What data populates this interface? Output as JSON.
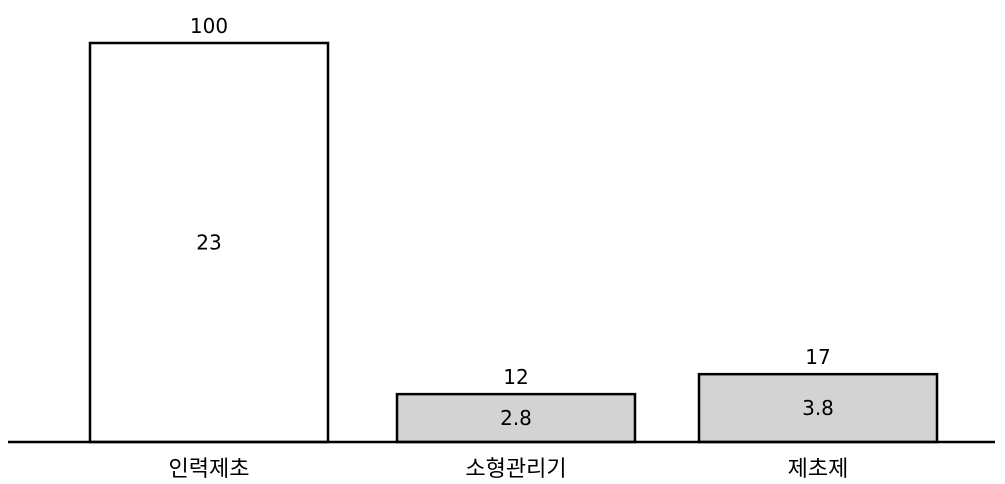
{
  "chart_data": {
    "type": "bar",
    "categories": [
      "인력제초",
      "소형관리기",
      "제초제"
    ],
    "values": [
      100,
      12,
      17
    ],
    "inner_labels": [
      "23",
      "2.8",
      "3.8"
    ],
    "bar_colors": [
      "#ffffff",
      "#d3d3d3",
      "#d3d3d3"
    ],
    "ylim": [
      0,
      100
    ],
    "grid": false,
    "legend": "none"
  }
}
